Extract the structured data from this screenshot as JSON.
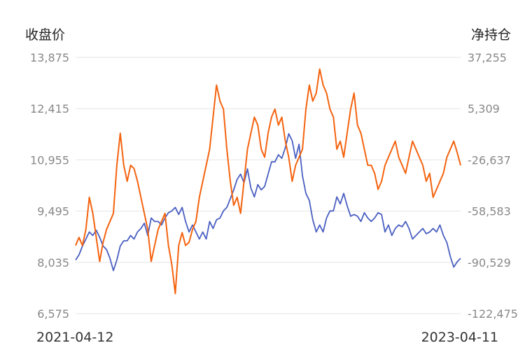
{
  "chart_data": {
    "type": "line",
    "y_left_label": "收盘价",
    "y_right_label": "净持仓",
    "x_start": "2021-04-12",
    "x_end": "2023-04-11",
    "y_left_ticks": [
      "13,875",
      "12,415",
      "10,955",
      "9,495",
      "8,035",
      "6,575"
    ],
    "y_right_ticks": [
      "37,255",
      "5,309",
      "-26,637",
      "-58,583",
      "-90,529",
      "-122,475"
    ],
    "y_left_range": [
      6575,
      13875
    ],
    "y_right_range": [
      -122475,
      37255
    ],
    "grid": true,
    "series": [
      {
        "key": "close",
        "color": "#4a5fc1",
        "axis": "left",
        "values": [
          8100,
          8250,
          8500,
          8700,
          8900,
          8800,
          8950,
          8750,
          8500,
          8400,
          8150,
          7800,
          8100,
          8500,
          8650,
          8650,
          8800,
          8700,
          8900,
          9000,
          9150,
          8800,
          9300,
          9200,
          9200,
          9100,
          9300,
          9450,
          9500,
          9600,
          9400,
          9600,
          9200,
          8900,
          9100,
          8900,
          8700,
          8900,
          8700,
          9200,
          9000,
          9250,
          9300,
          9500,
          9600,
          9850,
          10100,
          10400,
          10550,
          10300,
          10700,
          10150,
          9900,
          10250,
          10100,
          10200,
          10550,
          10900,
          10900,
          11100,
          11000,
          11300,
          11700,
          11500,
          11000,
          11400,
          10500,
          10000,
          9800,
          9250,
          8900,
          9100,
          8900,
          9300,
          9500,
          9500,
          9900,
          9700,
          10000,
          9650,
          9350,
          9400,
          9350,
          9200,
          9450,
          9300,
          9200,
          9300,
          9450,
          9400,
          8900,
          9100,
          8800,
          9000,
          9100,
          9050,
          9200,
          9000,
          8700,
          8800,
          8900,
          9000,
          8850,
          8900,
          9000,
          8900,
          9100,
          8800,
          8600,
          8200,
          7900,
          8050,
          8150
        ]
      },
      {
        "key": "net_position",
        "color": "#f4630f",
        "axis": "right",
        "values": [
          -80000,
          -75000,
          -80000,
          -70000,
          -50000,
          -60000,
          -75000,
          -90000,
          -78000,
          -70000,
          -65000,
          -60000,
          -30000,
          -10000,
          -30000,
          -40000,
          -30000,
          -32000,
          -40000,
          -50000,
          -60000,
          -70000,
          -90000,
          -80000,
          -70000,
          -65000,
          -60000,
          -80000,
          -92000,
          -110000,
          -80000,
          -72000,
          -80000,
          -78000,
          -70000,
          -65000,
          -50000,
          -40000,
          -30000,
          -20000,
          0,
          20000,
          10000,
          5000,
          -20000,
          -40000,
          -55000,
          -50000,
          -60000,
          -40000,
          -20000,
          -10000,
          0,
          -5000,
          -20000,
          -25000,
          -10000,
          0,
          5000,
          -5000,
          0,
          -15000,
          -25000,
          -40000,
          -30000,
          -25000,
          -20000,
          5000,
          20000,
          10000,
          15000,
          30000,
          20000,
          15000,
          5000,
          0,
          -20000,
          -15000,
          -25000,
          -10000,
          5000,
          15000,
          -5000,
          -10000,
          -20000,
          -30000,
          -30000,
          -35000,
          -45000,
          -40000,
          -30000,
          -25000,
          -20000,
          -15000,
          -25000,
          -30000,
          -35000,
          -25000,
          -15000,
          -20000,
          -25000,
          -30000,
          -40000,
          -35000,
          -50000,
          -45000,
          -40000,
          -35000,
          -25000,
          -20000,
          -15000,
          -22000,
          -30000
        ]
      }
    ]
  }
}
